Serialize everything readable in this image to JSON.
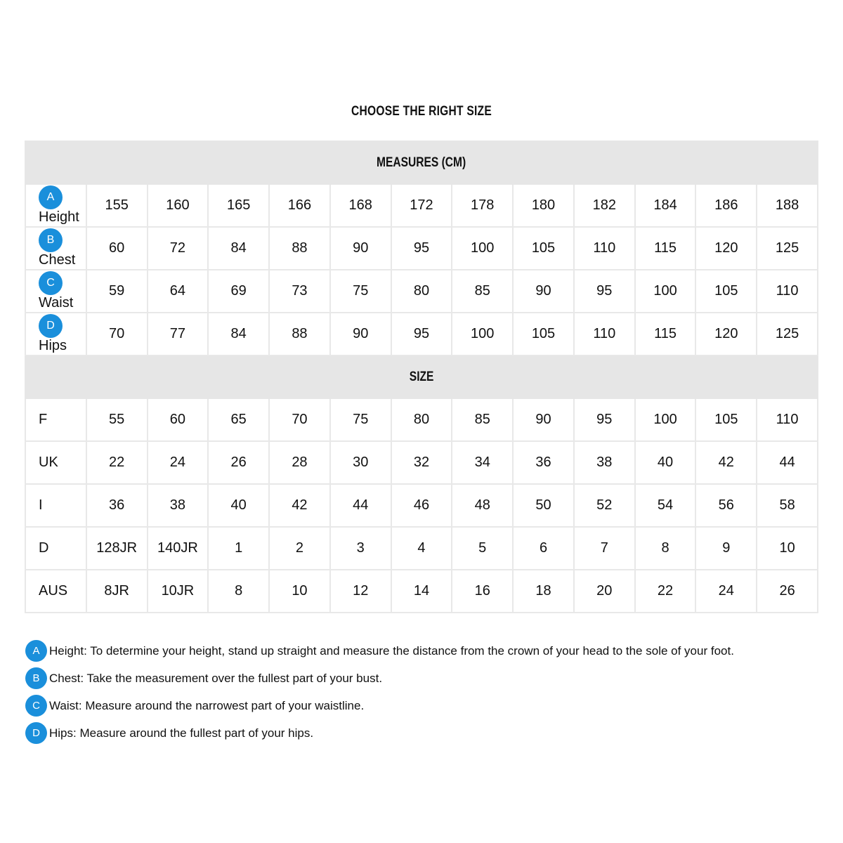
{
  "title": "CHOOSE THE RIGHT SIZE",
  "accent_color": "#1a8fdb",
  "measures": {
    "header": "MEASURES (CM)",
    "rows": [
      {
        "badge": "A",
        "label": "Height",
        "values": [
          "155",
          "160",
          "165",
          "166",
          "168",
          "172",
          "178",
          "180",
          "182",
          "184",
          "186",
          "188"
        ]
      },
      {
        "badge": "B",
        "label": "Chest",
        "values": [
          "60",
          "72",
          "84",
          "88",
          "90",
          "95",
          "100",
          "105",
          "110",
          "115",
          "120",
          "125"
        ]
      },
      {
        "badge": "C",
        "label": "Waist",
        "values": [
          "59",
          "64",
          "69",
          "73",
          "75",
          "80",
          "85",
          "90",
          "95",
          "100",
          "105",
          "110"
        ]
      },
      {
        "badge": "D",
        "label": "Hips",
        "values": [
          "70",
          "77",
          "84",
          "88",
          "90",
          "95",
          "100",
          "105",
          "110",
          "115",
          "120",
          "125"
        ]
      }
    ]
  },
  "size": {
    "header": "SIZE",
    "rows": [
      {
        "label": "F",
        "values": [
          "55",
          "60",
          "65",
          "70",
          "75",
          "80",
          "85",
          "90",
          "95",
          "100",
          "105",
          "110"
        ]
      },
      {
        "label": "UK",
        "values": [
          "22",
          "24",
          "26",
          "28",
          "30",
          "32",
          "34",
          "36",
          "38",
          "40",
          "42",
          "44"
        ]
      },
      {
        "label": "I",
        "values": [
          "36",
          "38",
          "40",
          "42",
          "44",
          "46",
          "48",
          "50",
          "52",
          "54",
          "56",
          "58"
        ]
      },
      {
        "label": "D",
        "values": [
          "128JR",
          "140JR",
          "1",
          "2",
          "3",
          "4",
          "5",
          "6",
          "7",
          "8",
          "9",
          "10"
        ]
      },
      {
        "label": "AUS",
        "values": [
          "8JR",
          "10JR",
          "8",
          "10",
          "12",
          "14",
          "16",
          "18",
          "20",
          "22",
          "24",
          "26"
        ]
      }
    ]
  },
  "notes": [
    {
      "badge": "A",
      "text": "Height: To determine your height, stand up straight and measure the distance from the crown of your head to the sole of your foot."
    },
    {
      "badge": "B",
      "text": "Chest: Take the measurement over the fullest part of your bust."
    },
    {
      "badge": "C",
      "text": "Waist: Measure around the narrowest part of your waistline."
    },
    {
      "badge": "D",
      "text": "Hips: Measure around the fullest part of your hips."
    }
  ]
}
